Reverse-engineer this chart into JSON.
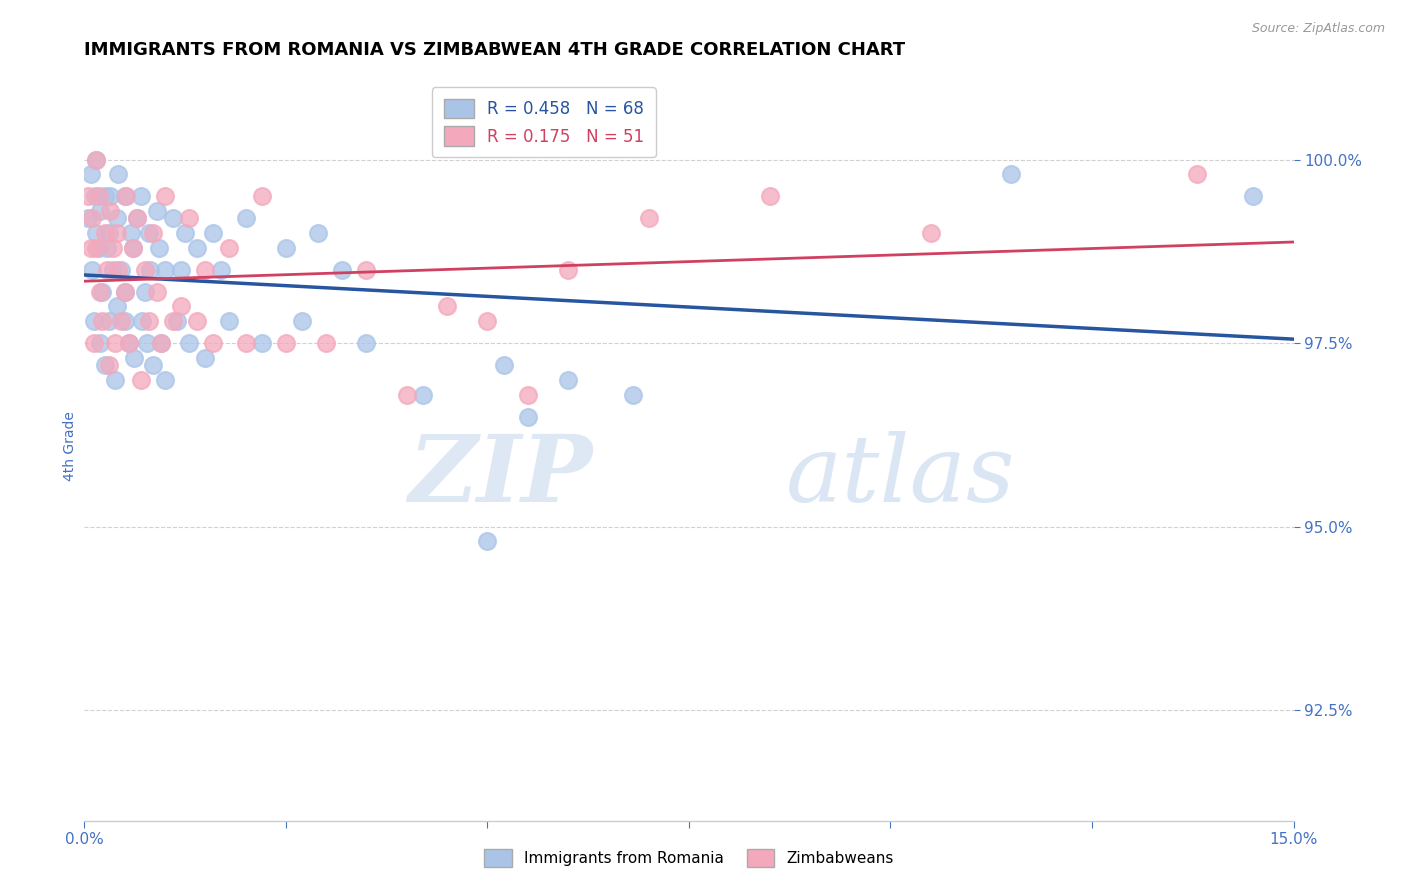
{
  "title": "IMMIGRANTS FROM ROMANIA VS ZIMBABWEAN 4TH GRADE CORRELATION CHART",
  "source": "Source: ZipAtlas.com",
  "ylabel": "4th Grade",
  "xlim": [
    0.0,
    15.0
  ],
  "ylim": [
    91.0,
    101.2
  ],
  "yticks": [
    92.5,
    95.0,
    97.5,
    100.0
  ],
  "ytick_labels": [
    "92.5%",
    "95.0%",
    "97.5%",
    "100.0%"
  ],
  "xtick_left": "0.0%",
  "xtick_right": "15.0%",
  "blue_R": 0.458,
  "blue_N": 68,
  "pink_R": 0.175,
  "pink_N": 51,
  "blue_color": "#aac4e8",
  "pink_color": "#f4a8bc",
  "blue_line_color": "#2855a0",
  "pink_line_color": "#d04060",
  "legend_label_blue": "Immigrants from Romania",
  "legend_label_pink": "Zimbabweans",
  "blue_scatter_x": [
    0.05,
    0.08,
    0.1,
    0.12,
    0.13,
    0.15,
    0.15,
    0.18,
    0.2,
    0.2,
    0.22,
    0.25,
    0.25,
    0.28,
    0.3,
    0.3,
    0.32,
    0.35,
    0.38,
    0.4,
    0.4,
    0.42,
    0.45,
    0.5,
    0.5,
    0.5,
    0.55,
    0.58,
    0.6,
    0.62,
    0.65,
    0.7,
    0.72,
    0.75,
    0.78,
    0.8,
    0.82,
    0.85,
    0.9,
    0.92,
    0.95,
    1.0,
    1.0,
    1.1,
    1.15,
    1.2,
    1.25,
    1.3,
    1.4,
    1.5,
    1.6,
    1.7,
    1.8,
    2.0,
    2.2,
    2.5,
    2.7,
    2.9,
    3.2,
    3.5,
    4.2,
    5.0,
    5.2,
    5.5,
    6.0,
    6.8,
    11.5,
    14.5
  ],
  "blue_scatter_y": [
    99.2,
    99.8,
    98.5,
    97.8,
    99.5,
    99.0,
    100.0,
    98.8,
    99.3,
    97.5,
    98.2,
    99.5,
    97.2,
    98.8,
    99.0,
    97.8,
    99.5,
    98.5,
    97.0,
    99.2,
    98.0,
    99.8,
    98.5,
    99.5,
    97.8,
    98.2,
    97.5,
    99.0,
    98.8,
    97.3,
    99.2,
    99.5,
    97.8,
    98.2,
    97.5,
    99.0,
    98.5,
    97.2,
    99.3,
    98.8,
    97.5,
    98.5,
    97.0,
    99.2,
    97.8,
    98.5,
    99.0,
    97.5,
    98.8,
    97.3,
    99.0,
    98.5,
    97.8,
    99.2,
    97.5,
    98.8,
    97.8,
    99.0,
    98.5,
    97.5,
    96.8,
    94.8,
    97.2,
    96.5,
    97.0,
    96.8,
    99.8,
    99.5
  ],
  "pink_scatter_x": [
    0.05,
    0.08,
    0.1,
    0.12,
    0.15,
    0.15,
    0.18,
    0.2,
    0.22,
    0.25,
    0.28,
    0.3,
    0.32,
    0.35,
    0.38,
    0.4,
    0.42,
    0.45,
    0.5,
    0.52,
    0.55,
    0.6,
    0.65,
    0.7,
    0.75,
    0.8,
    0.85,
    0.9,
    0.95,
    1.0,
    1.1,
    1.2,
    1.3,
    1.4,
    1.5,
    1.6,
    1.8,
    2.0,
    2.2,
    2.5,
    3.0,
    3.5,
    4.0,
    4.5,
    5.0,
    5.5,
    6.0,
    7.0,
    8.5,
    10.5,
    13.8
  ],
  "pink_scatter_y": [
    99.5,
    98.8,
    99.2,
    97.5,
    98.8,
    100.0,
    99.5,
    98.2,
    97.8,
    99.0,
    98.5,
    97.2,
    99.3,
    98.8,
    97.5,
    99.0,
    98.5,
    97.8,
    98.2,
    99.5,
    97.5,
    98.8,
    99.2,
    97.0,
    98.5,
    97.8,
    99.0,
    98.2,
    97.5,
    99.5,
    97.8,
    98.0,
    99.2,
    97.8,
    98.5,
    97.5,
    98.8,
    97.5,
    99.5,
    97.5,
    97.5,
    98.5,
    96.8,
    98.0,
    97.8,
    96.8,
    98.5,
    99.2,
    99.5,
    99.0,
    99.8
  ],
  "watermark_zip": "ZIP",
  "watermark_atlas": "atlas",
  "title_fontsize": 13,
  "tick_color": "#4472c4",
  "grid_color": "#cccccc"
}
